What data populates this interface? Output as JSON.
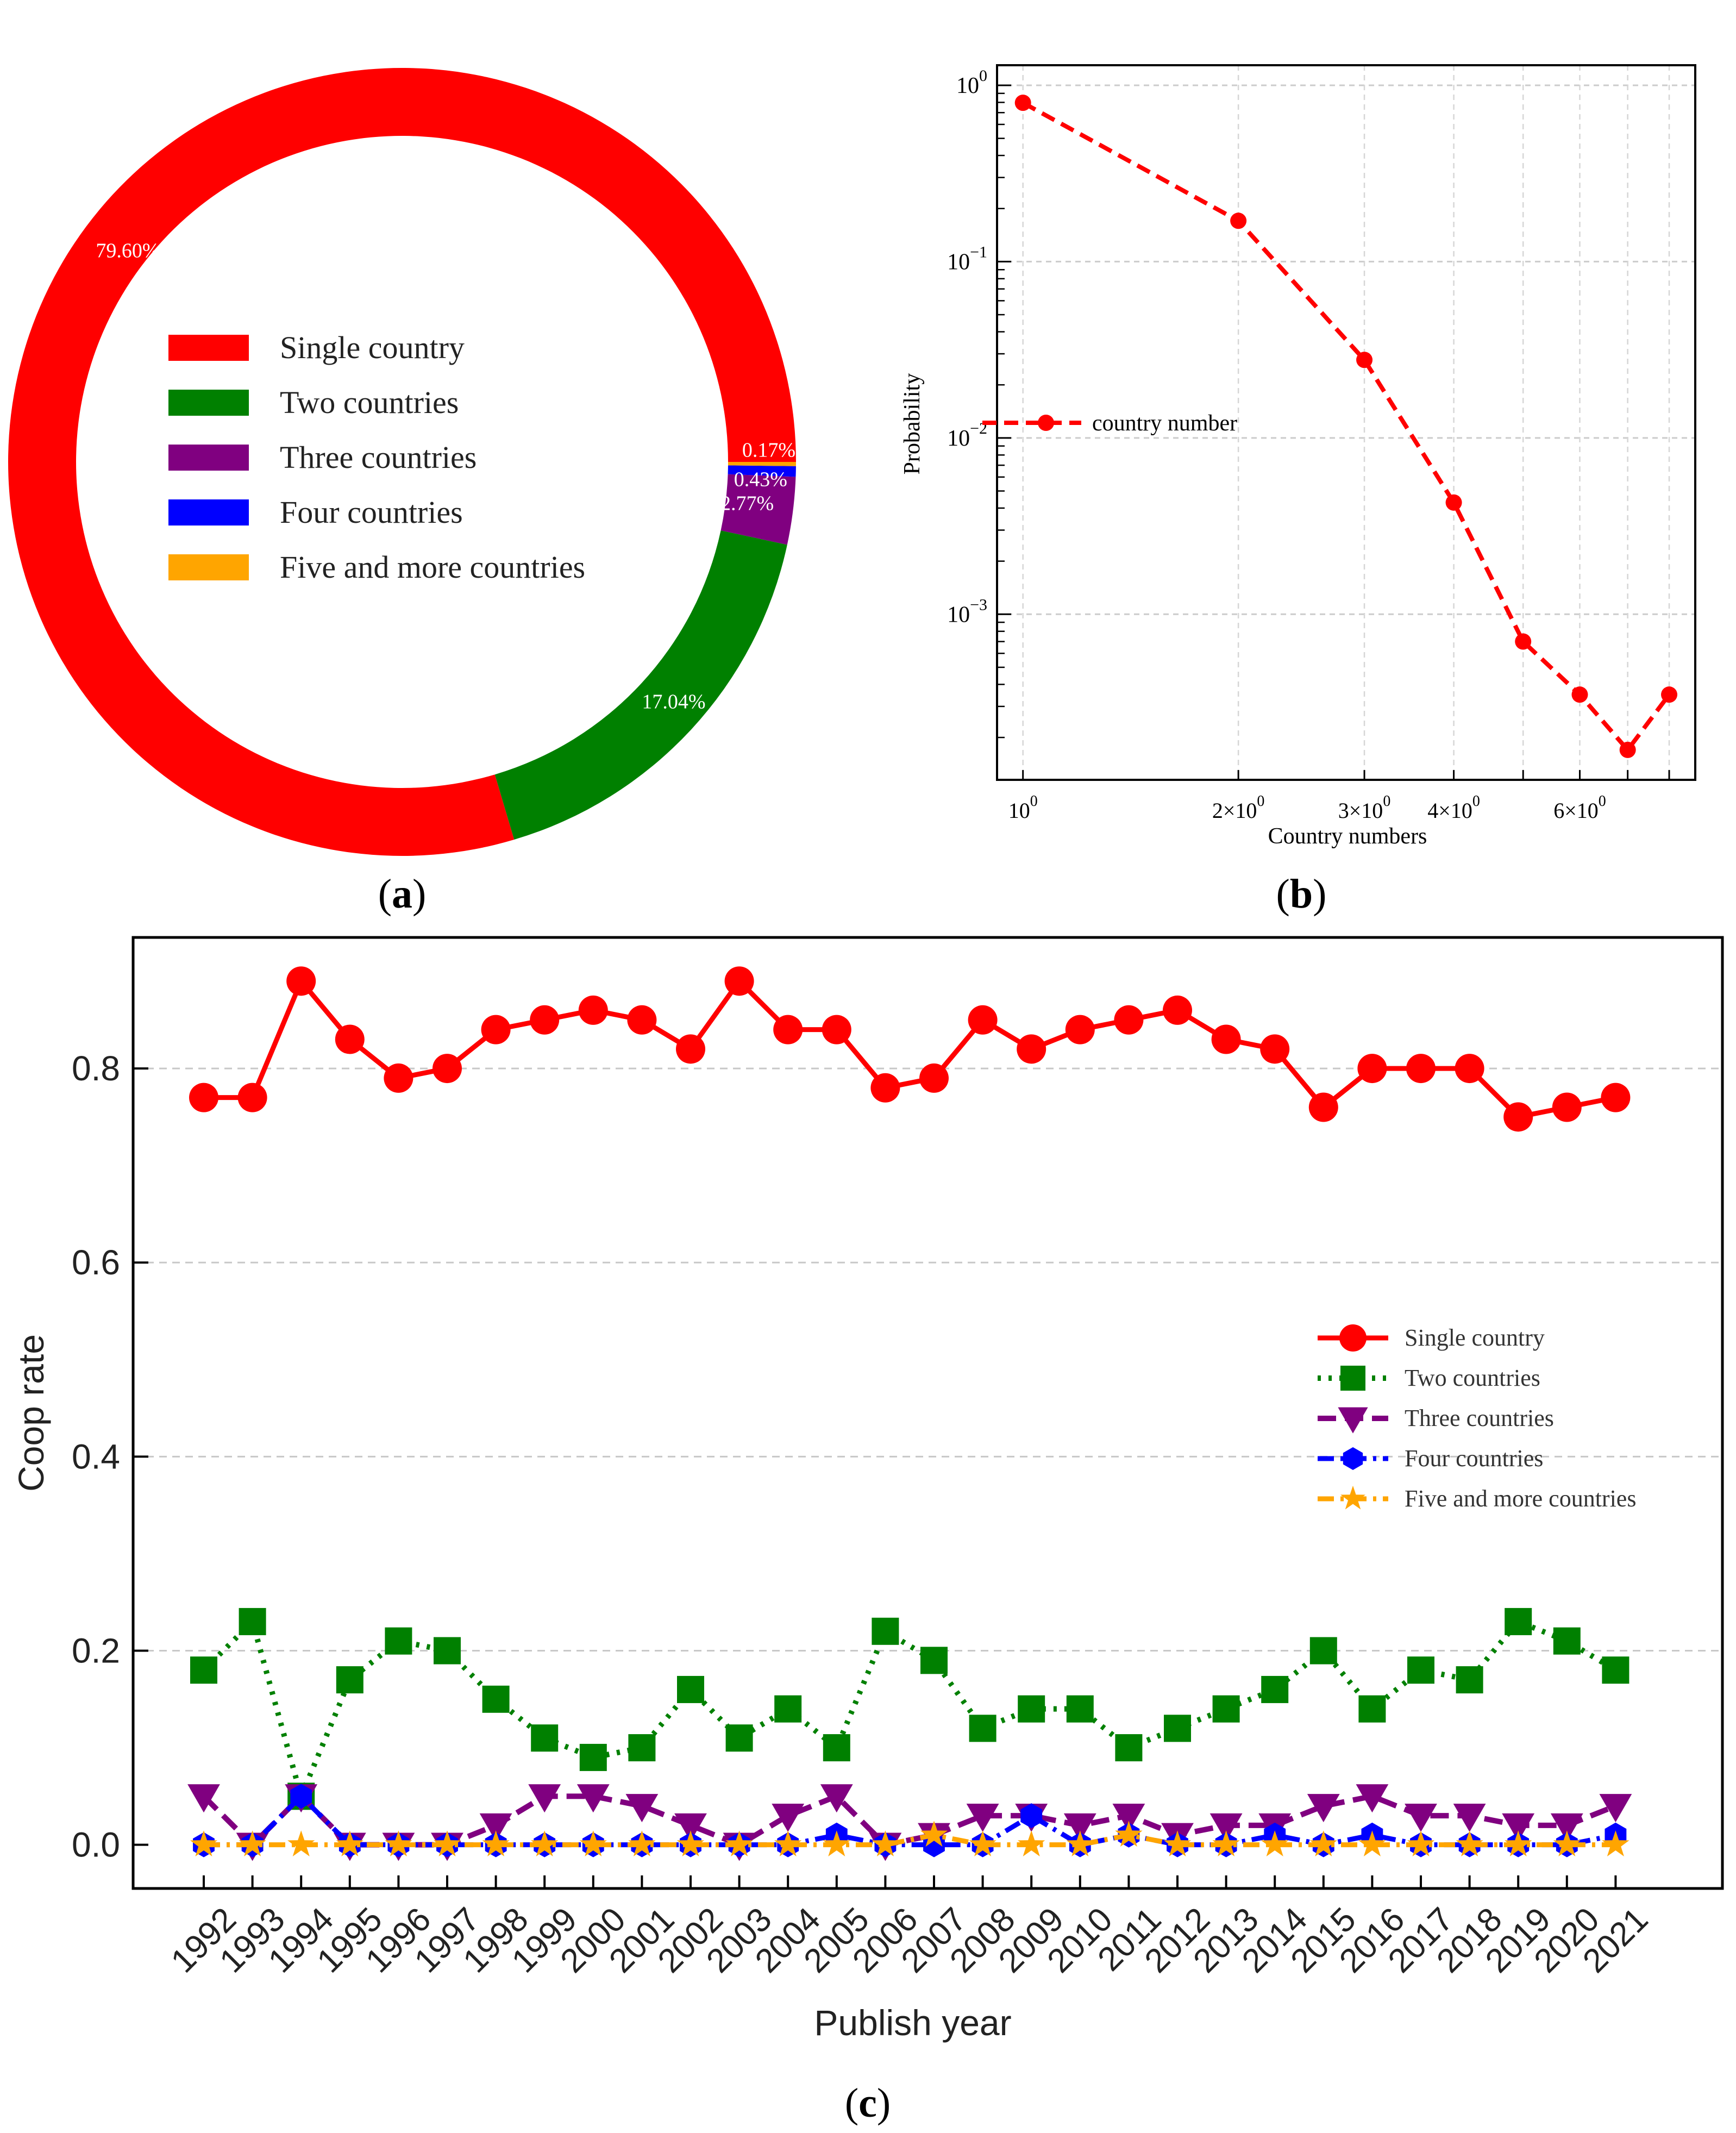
{
  "panels": {
    "a": {
      "label_open": "(",
      "label_letter": "a",
      "label_close": ")"
    },
    "b": {
      "label_open": "(",
      "label_letter": "b",
      "label_close": ")"
    },
    "c": {
      "label_open": "(",
      "label_letter": "c",
      "label_close": ")"
    }
  },
  "colors": {
    "single": "#ff0000",
    "two": "#008000",
    "three": "#800080",
    "four": "#0000ff",
    "five": "#ffa500"
  },
  "chart_data": [
    {
      "type": "pie",
      "donut": true,
      "panel": "a",
      "categories": [
        "Single country",
        "Two countries",
        "Three countries",
        "Four countries",
        "Five and more countries"
      ],
      "values": [
        79.6,
        17.04,
        2.77,
        0.43,
        0.17
      ],
      "slice_labels": [
        "79.60%",
        "17.04%",
        "2.77%",
        "0.43%",
        "0.17%"
      ],
      "legend_placement": "center"
    },
    {
      "type": "line",
      "panel": "b",
      "xscale": "log",
      "yscale": "log",
      "x": [
        1,
        2,
        3,
        4,
        5,
        6,
        7,
        8
      ],
      "series": [
        {
          "name": "country number",
          "values": [
            0.796,
            0.1704,
            0.0277,
            0.0043,
            0.0007,
            0.00035,
            0.00017,
            0.00035
          ]
        }
      ],
      "xlabel": "Country numbers",
      "ylabel": "Probability",
      "xlim": [
        0.92,
        8.7
      ],
      "ylim": [
        0.000115,
        1.3
      ],
      "xticks": [
        {
          "value": 1,
          "base": "10",
          "exp": "0"
        },
        {
          "value": 2,
          "base": "2×10",
          "exp": "0"
        },
        {
          "value": 3,
          "base": "3×10",
          "exp": "0"
        },
        {
          "value": 4,
          "base": "4×10",
          "exp": "0"
        },
        {
          "value": 6,
          "base": "6×10",
          "exp": "0"
        }
      ],
      "yticks": [
        {
          "value": 1,
          "base": "10",
          "exp": "0"
        },
        {
          "value": 0.1,
          "base": "10",
          "exp": "−1"
        },
        {
          "value": 0.01,
          "base": "10",
          "exp": "−2"
        },
        {
          "value": 0.001,
          "base": "10",
          "exp": "−3"
        }
      ],
      "grid": "y-dashed",
      "legend_placement": "center-left"
    },
    {
      "type": "line",
      "panel": "c",
      "xlabel": "Publish year",
      "ylabel": "Coop rate",
      "categories": [
        "1992",
        "1993",
        "1994",
        "1995",
        "1996",
        "1997",
        "1998",
        "1999",
        "2000",
        "2001",
        "2002",
        "2003",
        "2004",
        "2005",
        "2006",
        "2007",
        "2008",
        "2009",
        "2010",
        "2011",
        "2012",
        "2013",
        "2014",
        "2015",
        "2016",
        "2017",
        "2018",
        "2019",
        "2020",
        "2021"
      ],
      "ylim": [
        -0.045,
        0.935
      ],
      "yticks": [
        "0.0",
        "0.2",
        "0.4",
        "0.6",
        "0.8"
      ],
      "ytick_values": [
        0.0,
        0.2,
        0.4,
        0.6,
        0.8
      ],
      "grid": "y-dashed",
      "legend_placement": "center-right",
      "series": [
        {
          "name": "Single country",
          "marker": "circle",
          "dash": "solid",
          "values": [
            0.77,
            0.77,
            0.89,
            0.83,
            0.79,
            0.8,
            0.84,
            0.85,
            0.86,
            0.85,
            0.82,
            0.89,
            0.84,
            0.84,
            0.78,
            0.79,
            0.85,
            0.82,
            0.84,
            0.85,
            0.86,
            0.83,
            0.82,
            0.76,
            0.8,
            0.8,
            0.8,
            0.75,
            0.76,
            0.77
          ]
        },
        {
          "name": "Two countries",
          "marker": "square",
          "dash": "dotted",
          "values": [
            0.18,
            0.23,
            0.05,
            0.17,
            0.21,
            0.2,
            0.15,
            0.11,
            0.09,
            0.1,
            0.16,
            0.11,
            0.14,
            0.1,
            0.22,
            0.19,
            0.12,
            0.14,
            0.14,
            0.1,
            0.12,
            0.14,
            0.16,
            0.2,
            0.14,
            0.18,
            0.17,
            0.23,
            0.21,
            0.18
          ]
        },
        {
          "name": "Three countries",
          "marker": "triangle-down",
          "dash": "dashed",
          "values": [
            0.05,
            0.0,
            0.05,
            0.0,
            0.0,
            0.0,
            0.02,
            0.05,
            0.05,
            0.04,
            0.02,
            0.0,
            0.03,
            0.05,
            0.0,
            0.01,
            0.03,
            0.03,
            0.02,
            0.03,
            0.01,
            0.02,
            0.02,
            0.04,
            0.05,
            0.03,
            0.03,
            0.02,
            0.02,
            0.04
          ]
        },
        {
          "name": "Four countries",
          "marker": "hexagon",
          "dash": "dashdot",
          "values": [
            0.0,
            0.0,
            0.05,
            0.0,
            0.0,
            0.0,
            0.0,
            0.0,
            0.0,
            0.0,
            0.0,
            0.0,
            0.0,
            0.01,
            0.0,
            0.0,
            0.0,
            0.03,
            0.0,
            0.01,
            0.0,
            0.0,
            0.01,
            0.0,
            0.01,
            0.0,
            0.0,
            0.0,
            0.0,
            0.01
          ]
        },
        {
          "name": "Five and more countries",
          "marker": "star",
          "dash": "dashdot",
          "values": [
            0.0,
            0.0,
            0.0,
            0.0,
            0.0,
            0.0,
            0.0,
            0.0,
            0.0,
            0.0,
            0.0,
            0.0,
            0.0,
            0.0,
            0.0,
            0.01,
            0.0,
            0.0,
            0.0,
            0.01,
            0.0,
            0.0,
            0.0,
            0.0,
            0.0,
            0.0,
            0.0,
            0.0,
            0.0,
            0.0
          ]
        }
      ]
    }
  ]
}
